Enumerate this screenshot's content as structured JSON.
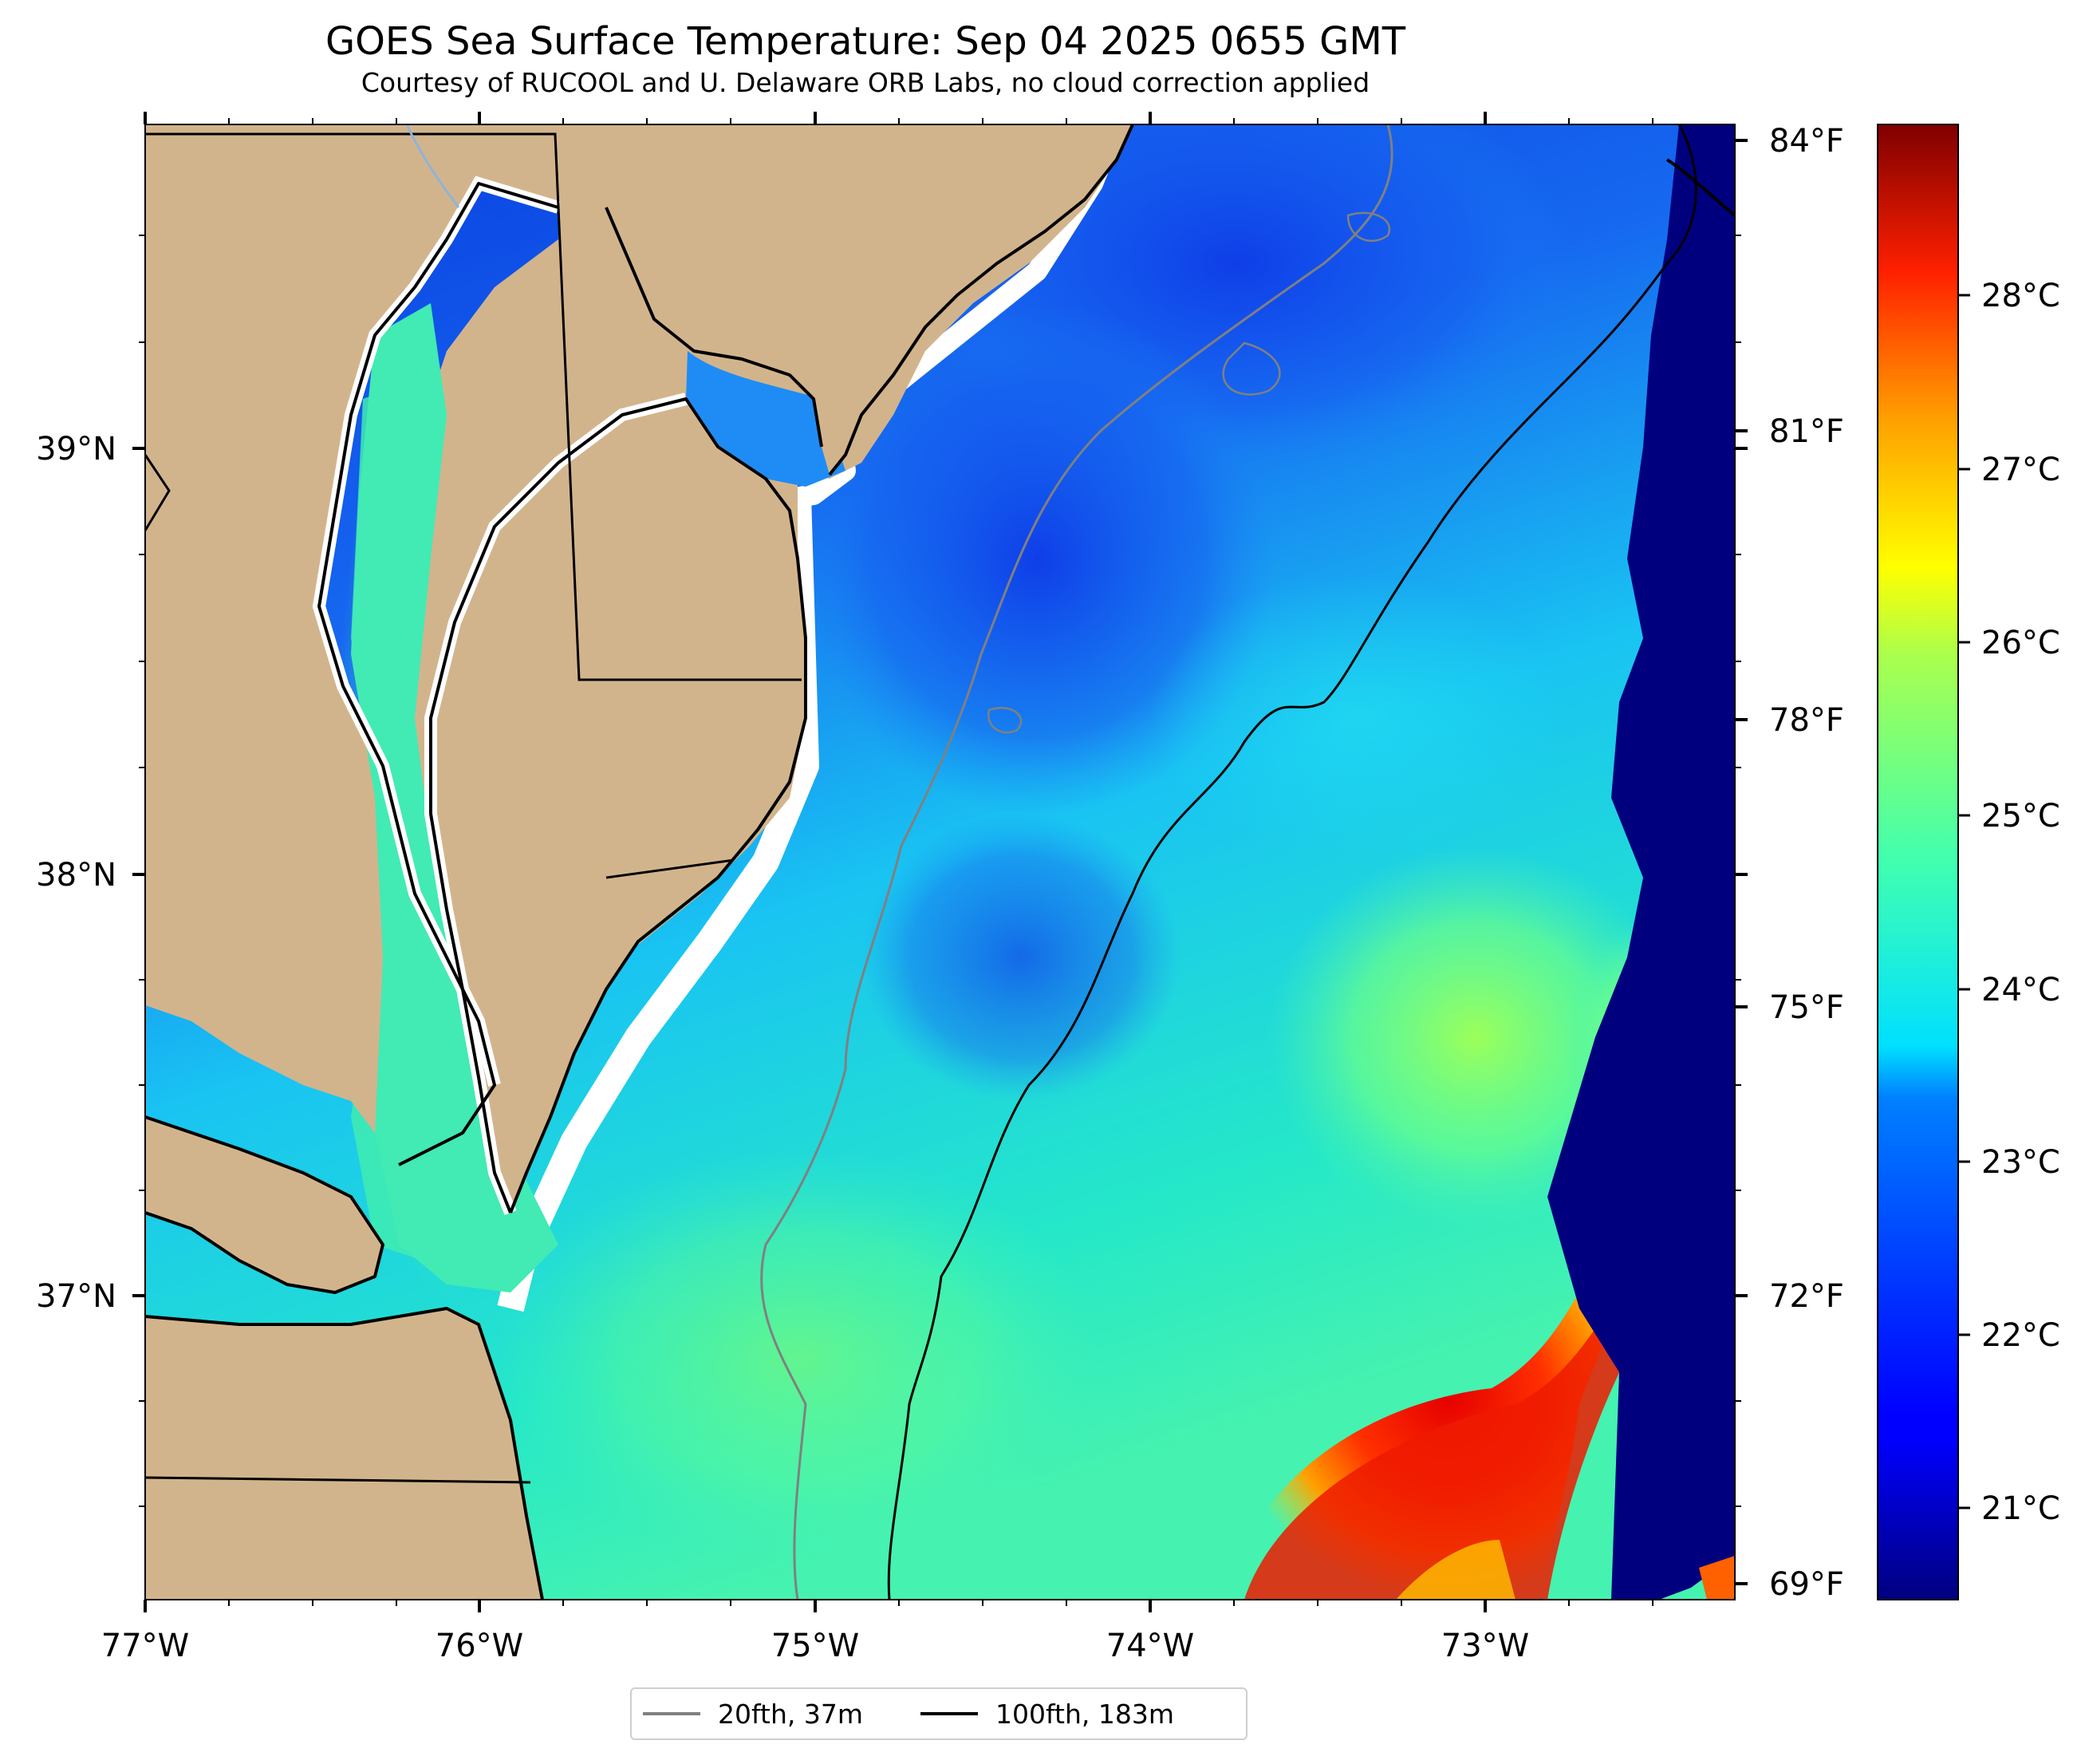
{
  "title": "GOES Sea Surface Temperature: Sep 04 2025 0655 GMT",
  "subtitle": "Courtesy of RUCOOL and U. Delaware ORB Labs, no cloud correction applied",
  "axes": {
    "lon_labels": [
      "77°W",
      "76°W",
      "75°W",
      "74°W",
      "73°W"
    ],
    "lat_labels": [
      "39°N",
      "38°N",
      "37°N"
    ]
  },
  "colorbar": {
    "f_labels": [
      "84°F",
      "81°F",
      "78°F",
      "75°F",
      "72°F",
      "69°F"
    ],
    "c_labels": [
      "28°C",
      "27°C",
      "26°C",
      "25°C",
      "24°C",
      "23°C",
      "22°C",
      "21°C"
    ],
    "colormap": "jet"
  },
  "legend": {
    "items": [
      {
        "label": "20fth, 37m",
        "color": "#808080"
      },
      {
        "label": "100fth, 183m",
        "color": "#000000"
      }
    ]
  },
  "colors": {
    "land": "#d2b48c",
    "no_data": "#ffffff",
    "isobath_20fth": "#808080",
    "isobath_100fth": "#000000",
    "river": "#8fb3d9"
  }
}
